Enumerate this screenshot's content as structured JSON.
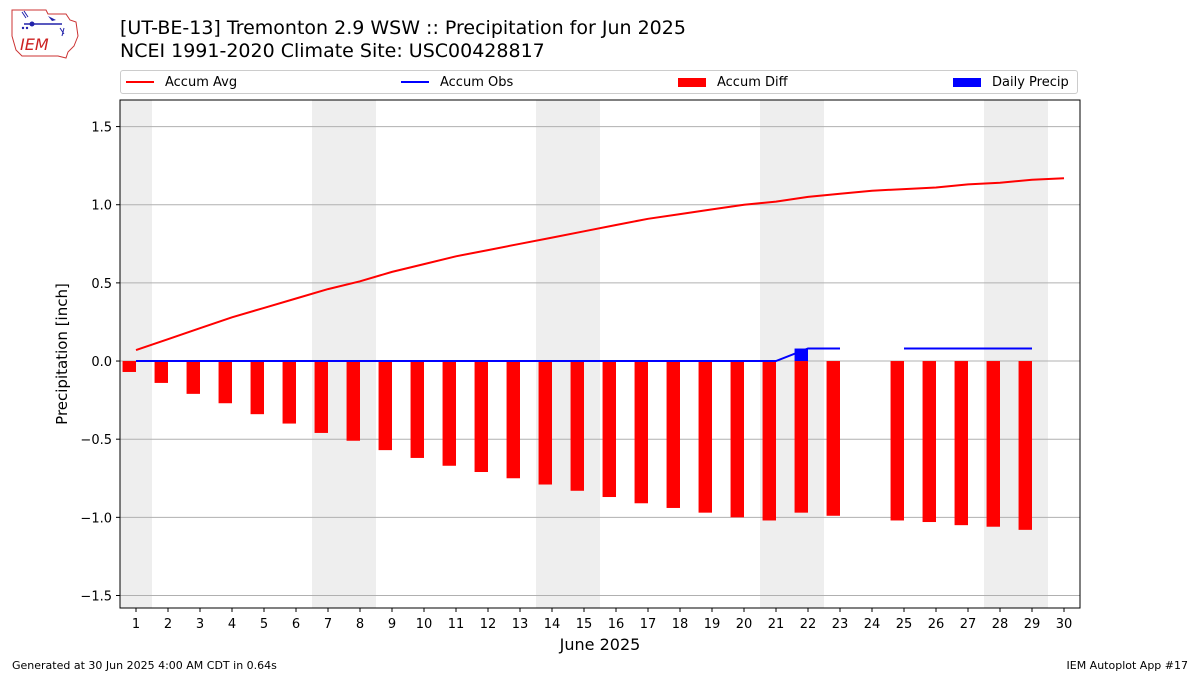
{
  "header": {
    "title": "[UT-BE-13] Tremonton 2.9 WSW :: Precipitation for Jun 2025",
    "subtitle": "NCEI 1991-2020 Climate Site: USC00428817",
    "logo_text": "IEM"
  },
  "legend": {
    "accum_avg": "Accum Avg",
    "accum_obs": "Accum Obs",
    "accum_diff": "Accum Diff",
    "daily_precip": "Daily Precip"
  },
  "footer": {
    "generated": "Generated at 30 Jun 2025 4:00 AM CDT in 0.64s",
    "app": "IEM Autoplot App #17"
  },
  "colors": {
    "avg": "#ff0000",
    "obs": "#0000ff",
    "diff": "#ff0000",
    "daily": "#0000ff",
    "weekend": "#eeeeee",
    "grid": "#b0b0b0"
  },
  "chart_data": {
    "type": "bar",
    "title": "[UT-BE-13] Tremonton 2.9 WSW :: Precipitation for Jun 2025",
    "subtitle": "NCEI 1991-2020 Climate Site: USC00428817",
    "xlabel": "June 2025",
    "ylabel": "Precipitation [inch]",
    "xlim": [
      0.5,
      30.5
    ],
    "ylim": [
      -1.58,
      1.67
    ],
    "yticks": [
      -1.5,
      -1.0,
      -0.5,
      0.0,
      0.5,
      1.0,
      1.5
    ],
    "ytick_labels": [
      "−1.5",
      "−1.0",
      "−0.5",
      "0.0",
      "0.5",
      "1.0",
      "1.5"
    ],
    "x": [
      1,
      2,
      3,
      4,
      5,
      6,
      7,
      8,
      9,
      10,
      11,
      12,
      13,
      14,
      15,
      16,
      17,
      18,
      19,
      20,
      21,
      22,
      23,
      24,
      25,
      26,
      27,
      28,
      29,
      30
    ],
    "weekend_days": [
      1,
      7,
      8,
      14,
      15,
      21,
      22,
      28,
      29
    ],
    "grid": "horizontal",
    "legend_position": "top",
    "series": [
      {
        "name": "Accum Avg",
        "kind": "line",
        "x": [
          1,
          2,
          3,
          4,
          5,
          6,
          7,
          8,
          9,
          10,
          11,
          12,
          13,
          14,
          15,
          16,
          17,
          18,
          19,
          20,
          21,
          22,
          23,
          24,
          25,
          26,
          27,
          28,
          29,
          30
        ],
        "values": [
          0.07,
          0.14,
          0.21,
          0.28,
          0.34,
          0.4,
          0.46,
          0.51,
          0.57,
          0.62,
          0.67,
          0.71,
          0.75,
          0.79,
          0.83,
          0.87,
          0.91,
          0.94,
          0.97,
          1.0,
          1.02,
          1.05,
          1.07,
          1.09,
          1.1,
          1.11,
          1.13,
          1.14,
          1.16,
          1.17
        ]
      },
      {
        "name": "Accum Obs",
        "kind": "line",
        "x": [
          1,
          2,
          3,
          4,
          5,
          6,
          7,
          8,
          9,
          10,
          11,
          12,
          13,
          14,
          15,
          16,
          17,
          18,
          19,
          20,
          21,
          22,
          23,
          24,
          25,
          26,
          27,
          28,
          29,
          30
        ],
        "values": [
          0,
          0,
          0,
          0,
          0,
          0,
          0,
          0,
          0,
          0,
          0,
          0,
          0,
          0,
          0,
          0,
          0,
          0,
          0,
          0,
          0,
          0.08,
          0.08,
          null,
          0.08,
          0.08,
          0.08,
          0.08,
          0.08,
          null
        ]
      },
      {
        "name": "Accum Diff",
        "kind": "bar",
        "x": [
          1,
          2,
          3,
          4,
          5,
          6,
          7,
          8,
          9,
          10,
          11,
          12,
          13,
          14,
          15,
          16,
          17,
          18,
          19,
          20,
          21,
          22,
          23,
          25,
          26,
          27,
          28,
          29
        ],
        "values": [
          -0.07,
          -0.14,
          -0.21,
          -0.27,
          -0.34,
          -0.4,
          -0.46,
          -0.51,
          -0.57,
          -0.62,
          -0.67,
          -0.71,
          -0.75,
          -0.79,
          -0.83,
          -0.87,
          -0.91,
          -0.94,
          -0.97,
          -1.0,
          -1.02,
          -0.97,
          -0.99,
          -1.02,
          -1.03,
          -1.05,
          -1.06,
          -1.08
        ]
      },
      {
        "name": "Daily Precip",
        "kind": "bar",
        "x": [
          22
        ],
        "values": [
          0.08
        ]
      }
    ]
  }
}
